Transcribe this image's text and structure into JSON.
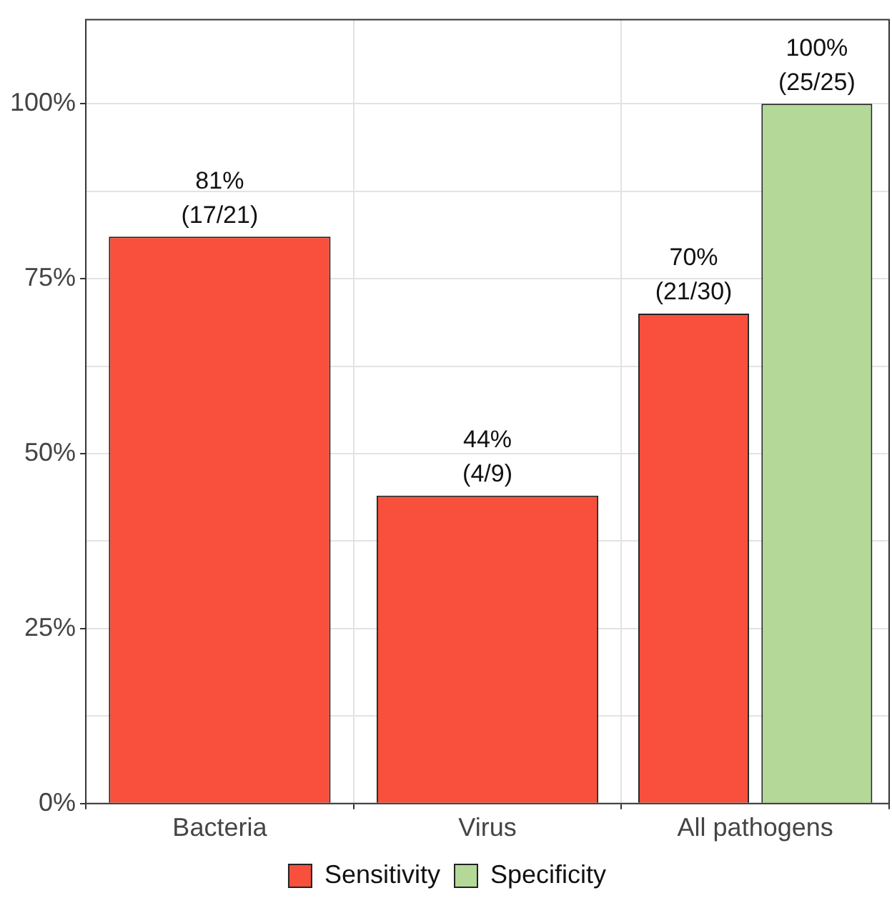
{
  "chart_data": {
    "type": "bar",
    "categories": [
      "Bacteria",
      "Virus",
      "All pathogens"
    ],
    "series": [
      {
        "name": "Sensitivity",
        "color": "#f8503c",
        "values": [
          81,
          44,
          70
        ],
        "value_labels": [
          "81%\n(17/21)",
          "44%\n(4/9)",
          "70%\n(21/30)"
        ]
      },
      {
        "name": "Specificity",
        "color": "#b3d898",
        "values": [
          null,
          null,
          100
        ],
        "value_labels": [
          null,
          null,
          "100%\n(25/25)"
        ]
      }
    ],
    "ylim": [
      0,
      112
    ],
    "yticks": [
      {
        "value": 0,
        "label": "0%"
      },
      {
        "value": 12.5,
        "label": null
      },
      {
        "value": 25,
        "label": "25%"
      },
      {
        "value": 37.5,
        "label": null
      },
      {
        "value": 50,
        "label": "50%"
      },
      {
        "value": 62.5,
        "label": null
      },
      {
        "value": 75,
        "label": "75%"
      },
      {
        "value": 87.5,
        "label": null
      },
      {
        "value": 100,
        "label": "100%"
      }
    ],
    "grid": true,
    "legend": "bottom"
  }
}
